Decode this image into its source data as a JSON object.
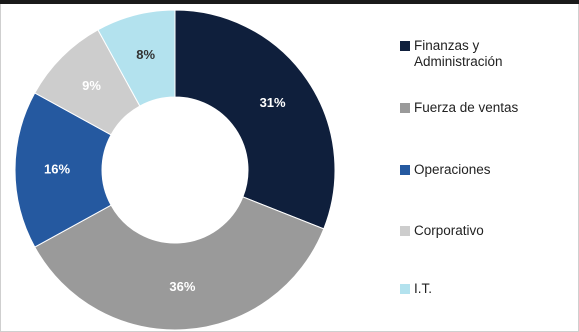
{
  "chart_data": {
    "type": "pie",
    "donut": true,
    "legend_position": "right",
    "slices": [
      {
        "label": "Finanzas y Administración",
        "value": 31,
        "display": "31%",
        "color": "#0f1f3c",
        "text_color": "#ffffff"
      },
      {
        "label": "Fuerza de ventas",
        "value": 36,
        "display": "36%",
        "color": "#9a9a9a",
        "text_color": "#ffffff"
      },
      {
        "label": "Operaciones",
        "value": 16,
        "display": "16%",
        "color": "#2559a0",
        "text_color": "#ffffff"
      },
      {
        "label": "Corporativo",
        "value": 9,
        "display": "9%",
        "color": "#cdcdcd",
        "text_color": "#ffffff"
      },
      {
        "label": "I.T.",
        "value": 8,
        "display": "8%",
        "color": "#b3e2ee",
        "text_color": "#333333"
      }
    ]
  },
  "legend": {
    "items": [
      {
        "line1": "Finanzas y",
        "line2": "Administración",
        "color": "#0f1f3c"
      },
      {
        "line1": "Fuerza de ventas",
        "color": "#9a9a9a"
      },
      {
        "line1": "Operaciones",
        "color": "#2559a0"
      },
      {
        "line1": "Corporativo",
        "color": "#cdcdcd"
      },
      {
        "line1": "I.T.",
        "color": "#b3e2ee"
      }
    ]
  }
}
